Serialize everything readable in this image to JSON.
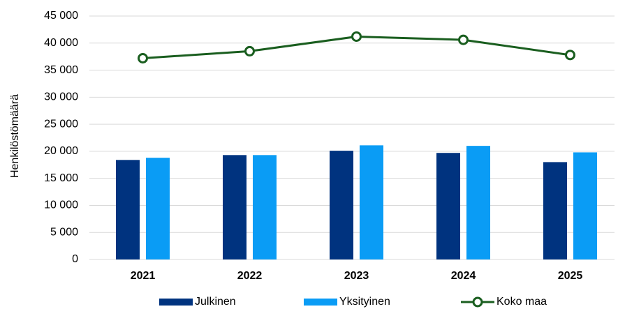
{
  "chart_data": {
    "type": "bar+line",
    "y_label": "Henkilöstömäärä",
    "categories": [
      "2021",
      "2022",
      "2023",
      "2024",
      "2025"
    ],
    "series": [
      {
        "name": "Julkinen",
        "type": "bar",
        "color": "#00337f",
        "values": [
          18400,
          19300,
          20100,
          19700,
          18000
        ]
      },
      {
        "name": "Yksityinen",
        "type": "bar",
        "color": "#0a9cf5",
        "values": [
          18800,
          19300,
          21100,
          21000,
          19800
        ]
      },
      {
        "name": "Koko maa",
        "type": "line",
        "color": "#1a5e1f",
        "values": [
          37200,
          38500,
          41200,
          40600,
          37800
        ]
      }
    ],
    "ylim": [
      0,
      45000
    ],
    "yticks": [
      0,
      {
        "value": 5000,
        "label": "5 000"
      },
      {
        "value": 10000,
        "label": "10 000"
      },
      {
        "value": 15000,
        "label": "15 000"
      },
      {
        "value": 20000,
        "label": "20 000"
      },
      {
        "value": 25000,
        "label": "25 000"
      },
      {
        "value": 30000,
        "label": "30 000"
      },
      {
        "value": 35000,
        "label": "35 000"
      },
      {
        "value": 40000,
        "label": "40 000"
      },
      {
        "value": 45000,
        "label": "45 000"
      }
    ],
    "grid": true,
    "legend": "bottom"
  }
}
